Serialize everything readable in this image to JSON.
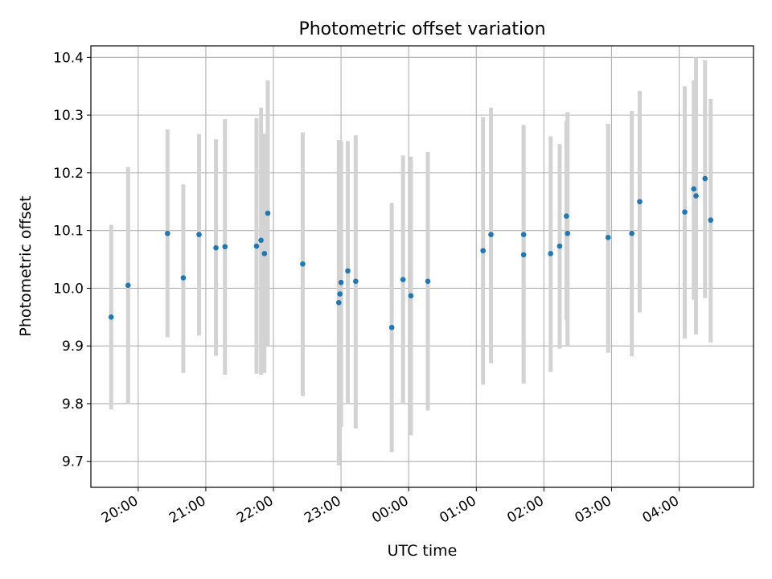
{
  "chart_data": {
    "type": "scatter",
    "title": "Photometric offset variation",
    "xlabel": "UTC time",
    "ylabel": "Photometric offset",
    "grid": true,
    "legend": "none",
    "xlim": [
      "19:18",
      "05:06"
    ],
    "ylim": [
      9.655,
      10.42
    ],
    "xticks": [
      "20:00",
      "21:00",
      "22:00",
      "23:00",
      "00:00",
      "01:00",
      "02:00",
      "03:00",
      "04:00"
    ],
    "yticks": [
      "9.7",
      "9.8",
      "9.9",
      "10.0",
      "10.1",
      "10.2",
      "10.3",
      "10.4"
    ],
    "colors": {
      "point": "#1f77b4",
      "errorbar": "#d3d3d3",
      "grid": "#b0b0b0"
    },
    "series": [
      {
        "points": [
          {
            "x": "19:36",
            "y": 9.95,
            "lo": 9.79,
            "hi": 10.11
          },
          {
            "x": "19:51",
            "y": 10.005,
            "lo": 9.8,
            "hi": 10.21
          },
          {
            "x": "20:26",
            "y": 10.095,
            "lo": 9.915,
            "hi": 10.275
          },
          {
            "x": "20:40",
            "y": 10.018,
            "lo": 9.853,
            "hi": 10.18
          },
          {
            "x": "20:54",
            "y": 10.093,
            "lo": 9.918,
            "hi": 10.267
          },
          {
            "x": "21:09",
            "y": 10.07,
            "lo": 9.883,
            "hi": 10.258
          },
          {
            "x": "21:17",
            "y": 10.072,
            "lo": 9.85,
            "hi": 10.293
          },
          {
            "x": "21:45",
            "y": 10.073,
            "lo": 9.852,
            "hi": 10.295
          },
          {
            "x": "21:49",
            "y": 10.083,
            "lo": 9.85,
            "hi": 10.313
          },
          {
            "x": "21:52",
            "y": 10.06,
            "lo": 9.853,
            "hi": 10.268
          },
          {
            "x": "21:55",
            "y": 10.13,
            "lo": 9.9,
            "hi": 10.36
          },
          {
            "x": "22:26",
            "y": 10.042,
            "lo": 9.813,
            "hi": 10.27
          },
          {
            "x": "22:58",
            "y": 9.975,
            "lo": 9.693,
            "hi": 10.257
          },
          {
            "x": "22:59",
            "y": 9.99,
            "lo": 9.72,
            "hi": 10.255
          },
          {
            "x": "23:00",
            "y": 10.01,
            "lo": 9.76,
            "hi": 10.255
          },
          {
            "x": "23:06",
            "y": 10.03,
            "lo": 9.8,
            "hi": 10.255
          },
          {
            "x": "23:13",
            "y": 10.012,
            "lo": 9.757,
            "hi": 10.265
          },
          {
            "x": "23:45",
            "y": 9.932,
            "lo": 9.716,
            "hi": 10.148
          },
          {
            "x": "23:55",
            "y": 10.015,
            "lo": 9.8,
            "hi": 10.23
          },
          {
            "x": "00:02",
            "y": 9.987,
            "lo": 9.745,
            "hi": 10.228
          },
          {
            "x": "00:17",
            "y": 10.012,
            "lo": 9.788,
            "hi": 10.236
          },
          {
            "x": "01:06",
            "y": 10.065,
            "lo": 9.833,
            "hi": 10.296
          },
          {
            "x": "01:13",
            "y": 10.093,
            "lo": 9.87,
            "hi": 10.313
          },
          {
            "x": "01:42",
            "y": 10.058,
            "lo": 9.835,
            "hi": 10.283
          },
          {
            "x": "01:42",
            "y": 10.093,
            "lo": 9.9,
            "hi": 10.28
          },
          {
            "x": "02:06",
            "y": 10.06,
            "lo": 9.855,
            "hi": 10.263
          },
          {
            "x": "02:14",
            "y": 10.073,
            "lo": 9.895,
            "hi": 10.25
          },
          {
            "x": "02:20",
            "y": 10.125,
            "lo": 9.945,
            "hi": 10.29
          },
          {
            "x": "02:21",
            "y": 10.095,
            "lo": 9.9,
            "hi": 10.305
          },
          {
            "x": "02:57",
            "y": 10.088,
            "lo": 9.888,
            "hi": 10.285
          },
          {
            "x": "03:18",
            "y": 10.095,
            "lo": 9.882,
            "hi": 10.307
          },
          {
            "x": "03:25",
            "y": 10.15,
            "lo": 9.958,
            "hi": 10.342
          },
          {
            "x": "04:05",
            "y": 10.132,
            "lo": 9.913,
            "hi": 10.35
          },
          {
            "x": "04:13",
            "y": 10.172,
            "lo": 9.98,
            "hi": 10.36
          },
          {
            "x": "04:15",
            "y": 10.16,
            "lo": 9.92,
            "hi": 10.4
          },
          {
            "x": "04:23",
            "y": 10.19,
            "lo": 9.983,
            "hi": 10.395
          },
          {
            "x": "04:28",
            "y": 10.118,
            "lo": 9.906,
            "hi": 10.328
          }
        ]
      }
    ]
  }
}
